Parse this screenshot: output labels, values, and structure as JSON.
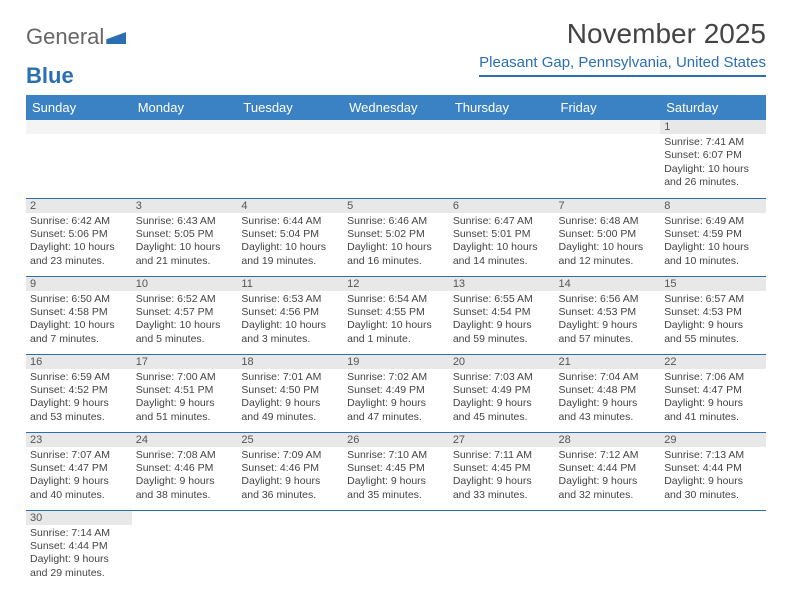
{
  "logo": {
    "text1": "General",
    "text2": "Blue"
  },
  "title": "November 2025",
  "location": "Pleasant Gap, Pennsylvania, United States",
  "colors": {
    "header_bg": "#3b82c4",
    "accent": "#2b6fb3",
    "daynum_bg": "#e8e8e8",
    "text": "#444444"
  },
  "weekdays": [
    "Sunday",
    "Monday",
    "Tuesday",
    "Wednesday",
    "Thursday",
    "Friday",
    "Saturday"
  ],
  "weeks": [
    [
      null,
      null,
      null,
      null,
      null,
      null,
      {
        "n": "1",
        "sr": "7:41 AM",
        "ss": "6:07 PM",
        "dl": "10 hours and 26 minutes."
      }
    ],
    [
      {
        "n": "2",
        "sr": "6:42 AM",
        "ss": "5:06 PM",
        "dl": "10 hours and 23 minutes."
      },
      {
        "n": "3",
        "sr": "6:43 AM",
        "ss": "5:05 PM",
        "dl": "10 hours and 21 minutes."
      },
      {
        "n": "4",
        "sr": "6:44 AM",
        "ss": "5:04 PM",
        "dl": "10 hours and 19 minutes."
      },
      {
        "n": "5",
        "sr": "6:46 AM",
        "ss": "5:02 PM",
        "dl": "10 hours and 16 minutes."
      },
      {
        "n": "6",
        "sr": "6:47 AM",
        "ss": "5:01 PM",
        "dl": "10 hours and 14 minutes."
      },
      {
        "n": "7",
        "sr": "6:48 AM",
        "ss": "5:00 PM",
        "dl": "10 hours and 12 minutes."
      },
      {
        "n": "8",
        "sr": "6:49 AM",
        "ss": "4:59 PM",
        "dl": "10 hours and 10 minutes."
      }
    ],
    [
      {
        "n": "9",
        "sr": "6:50 AM",
        "ss": "4:58 PM",
        "dl": "10 hours and 7 minutes."
      },
      {
        "n": "10",
        "sr": "6:52 AM",
        "ss": "4:57 PM",
        "dl": "10 hours and 5 minutes."
      },
      {
        "n": "11",
        "sr": "6:53 AM",
        "ss": "4:56 PM",
        "dl": "10 hours and 3 minutes."
      },
      {
        "n": "12",
        "sr": "6:54 AM",
        "ss": "4:55 PM",
        "dl": "10 hours and 1 minute."
      },
      {
        "n": "13",
        "sr": "6:55 AM",
        "ss": "4:54 PM",
        "dl": "9 hours and 59 minutes."
      },
      {
        "n": "14",
        "sr": "6:56 AM",
        "ss": "4:53 PM",
        "dl": "9 hours and 57 minutes."
      },
      {
        "n": "15",
        "sr": "6:57 AM",
        "ss": "4:53 PM",
        "dl": "9 hours and 55 minutes."
      }
    ],
    [
      {
        "n": "16",
        "sr": "6:59 AM",
        "ss": "4:52 PM",
        "dl": "9 hours and 53 minutes."
      },
      {
        "n": "17",
        "sr": "7:00 AM",
        "ss": "4:51 PM",
        "dl": "9 hours and 51 minutes."
      },
      {
        "n": "18",
        "sr": "7:01 AM",
        "ss": "4:50 PM",
        "dl": "9 hours and 49 minutes."
      },
      {
        "n": "19",
        "sr": "7:02 AM",
        "ss": "4:49 PM",
        "dl": "9 hours and 47 minutes."
      },
      {
        "n": "20",
        "sr": "7:03 AM",
        "ss": "4:49 PM",
        "dl": "9 hours and 45 minutes."
      },
      {
        "n": "21",
        "sr": "7:04 AM",
        "ss": "4:48 PM",
        "dl": "9 hours and 43 minutes."
      },
      {
        "n": "22",
        "sr": "7:06 AM",
        "ss": "4:47 PM",
        "dl": "9 hours and 41 minutes."
      }
    ],
    [
      {
        "n": "23",
        "sr": "7:07 AM",
        "ss": "4:47 PM",
        "dl": "9 hours and 40 minutes."
      },
      {
        "n": "24",
        "sr": "7:08 AM",
        "ss": "4:46 PM",
        "dl": "9 hours and 38 minutes."
      },
      {
        "n": "25",
        "sr": "7:09 AM",
        "ss": "4:46 PM",
        "dl": "9 hours and 36 minutes."
      },
      {
        "n": "26",
        "sr": "7:10 AM",
        "ss": "4:45 PM",
        "dl": "9 hours and 35 minutes."
      },
      {
        "n": "27",
        "sr": "7:11 AM",
        "ss": "4:45 PM",
        "dl": "9 hours and 33 minutes."
      },
      {
        "n": "28",
        "sr": "7:12 AM",
        "ss": "4:44 PM",
        "dl": "9 hours and 32 minutes."
      },
      {
        "n": "29",
        "sr": "7:13 AM",
        "ss": "4:44 PM",
        "dl": "9 hours and 30 minutes."
      }
    ],
    [
      {
        "n": "30",
        "sr": "7:14 AM",
        "ss": "4:44 PM",
        "dl": "9 hours and 29 minutes."
      },
      null,
      null,
      null,
      null,
      null,
      null
    ]
  ],
  "labels": {
    "sunrise": "Sunrise:",
    "sunset": "Sunset:",
    "daylight": "Daylight:"
  }
}
